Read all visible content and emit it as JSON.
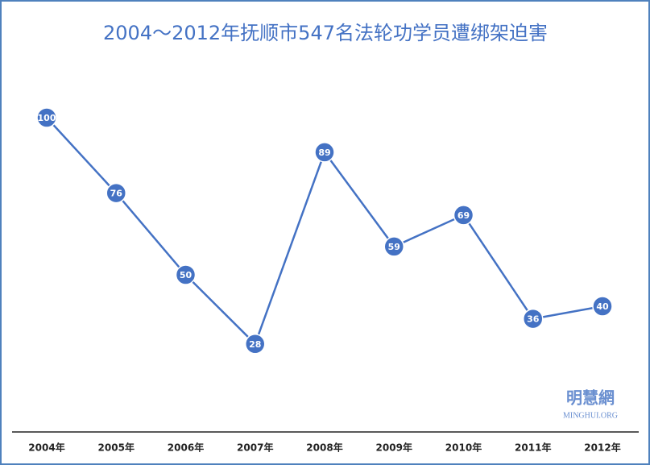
{
  "chart_data": {
    "type": "line",
    "title": "2004～2012年抚顺市547名法轮功学员遭绑架迫害",
    "categories": [
      "2004年",
      "2005年",
      "2006年",
      "2007年",
      "2008年",
      "2009年",
      "2010年",
      "2011年",
      "2012年"
    ],
    "values": [
      100,
      76,
      50,
      28,
      89,
      59,
      69,
      36,
      40
    ],
    "color": "#4472c4",
    "annotations": [
      "明慧網",
      "MINGHUI.ORG"
    ]
  }
}
